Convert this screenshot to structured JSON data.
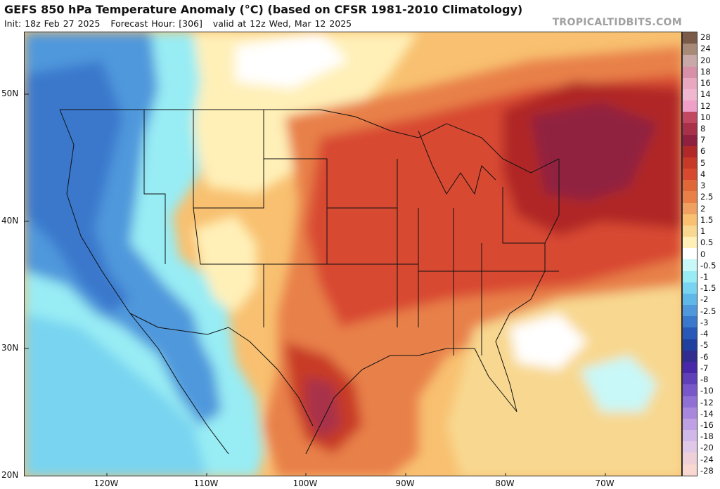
{
  "header": {
    "title": "GEFS 850 hPa Temperature Anomaly (°C) (based on CFSR 1981-2010 Climatology)",
    "subtitle": "Init: 18z Feb 27 2025   Forecast Hour: [306]   valid at 12z Wed, Mar 12 2025",
    "brand": "TROPICALTIDBITS.COM"
  },
  "map": {
    "latitude_labels": [
      "50N",
      "40N",
      "30N",
      "20N"
    ],
    "longitude_labels": [
      "120W",
      "110W",
      "100W",
      "90W",
      "80W",
      "70W"
    ]
  },
  "colorbar": {
    "labels": [
      "28",
      "24",
      "20",
      "18",
      "16",
      "14",
      "12",
      "10",
      "8",
      "7",
      "6",
      "5",
      "4",
      "3",
      "2.5",
      "2",
      "1.5",
      "1",
      "0.5",
      "0",
      "-0.5",
      "-1",
      "-1.5",
      "-2",
      "-2.5",
      "-3",
      "-4",
      "-5",
      "-6",
      "-7",
      "-8",
      "-10",
      "-12",
      "-14",
      "-16",
      "-18",
      "-20",
      "-24",
      "-28"
    ],
    "colors": [
      "#7a5a48",
      "#a88a78",
      "#c8a8a8",
      "#d890a8",
      "#e8a8c0",
      "#f0b8d0",
      "#f0a0c8",
      "#c04860",
      "#a83048",
      "#902040",
      "#b02828",
      "#c83a28",
      "#d84a30",
      "#e06838",
      "#e88048",
      "#f0a060",
      "#f8c070",
      "#f8d890",
      "#fff0b8",
      "#ffffff",
      "#c8f8f8",
      "#98ecf4",
      "#78d4f0",
      "#60b8e8",
      "#5098dc",
      "#3a78cc",
      "#2858b8",
      "#2040a0",
      "#302c90",
      "#4828a8",
      "#6040b8",
      "#7858c8",
      "#9070d4",
      "#a888dc",
      "#c0a0e4",
      "#d0b8e8",
      "#e0c8e8",
      "#f0d0d8",
      "#f8d8d0"
    ]
  }
}
